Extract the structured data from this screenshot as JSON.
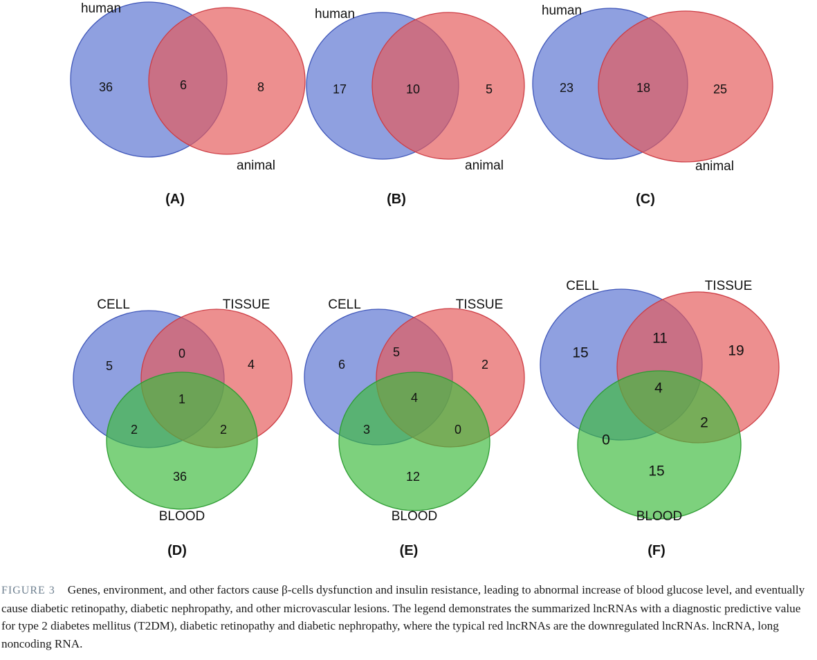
{
  "colors": {
    "set_a": "#5a73d1",
    "set_b": "#e55a5a",
    "set_c": "#3fbb3f",
    "set_a_stroke": "#3e55b8",
    "set_b_stroke": "#cc3c44",
    "set_c_stroke": "#2e9c33"
  },
  "chart_data": [
    {
      "type": "venn2",
      "panel": "(A)",
      "sets": [
        "human",
        "animal"
      ],
      "counts": {
        "human_only": 36,
        "both": 6,
        "animal_only": 8
      }
    },
    {
      "type": "venn2",
      "panel": "(B)",
      "sets": [
        "human",
        "animal"
      ],
      "counts": {
        "human_only": 17,
        "both": 10,
        "animal_only": 5
      }
    },
    {
      "type": "venn2",
      "panel": "(C)",
      "sets": [
        "human",
        "animal"
      ],
      "counts": {
        "human_only": 23,
        "both": 18,
        "animal_only": 25
      }
    },
    {
      "type": "venn3",
      "panel": "(D)",
      "sets": [
        "CELL",
        "TISSUE",
        "BLOOD"
      ],
      "counts": {
        "cell_only": 5,
        "cell_tissue": 0,
        "tissue_only": 4,
        "all": 1,
        "cell_blood": 2,
        "tissue_blood": 2,
        "blood_only": 36
      }
    },
    {
      "type": "venn3",
      "panel": "(E)",
      "sets": [
        "CELL",
        "TISSUE",
        "BLOOD"
      ],
      "counts": {
        "cell_only": 6,
        "cell_tissue": 5,
        "tissue_only": 2,
        "all": 4,
        "cell_blood": 3,
        "tissue_blood": 0,
        "blood_only": 12
      }
    },
    {
      "type": "venn3",
      "panel": "(F)",
      "sets": [
        "CELL",
        "TISSUE",
        "BLOOD"
      ],
      "counts": {
        "cell_only": 15,
        "cell_tissue": 11,
        "tissue_only": 19,
        "all": 4,
        "cell_blood": 0,
        "tissue_blood": 2,
        "blood_only": 15
      }
    }
  ],
  "caption": {
    "figure_number": "FIGURE 3",
    "text": "Genes, environment, and other factors cause β-cells dysfunction and insulin resistance, leading to abnormal increase of blood glucose level, and eventually cause diabetic retinopathy, diabetic nephropathy, and other microvascular lesions. The legend demonstrates the summarized lncRNAs with a diagnostic predictive value for type 2 diabetes mellitus (T2DM), diabetic retinopathy and diabetic nephropathy, where the typical red lncRNAs are the downregulated lncRNAs. lncRNA, long noncoding RNA."
  }
}
